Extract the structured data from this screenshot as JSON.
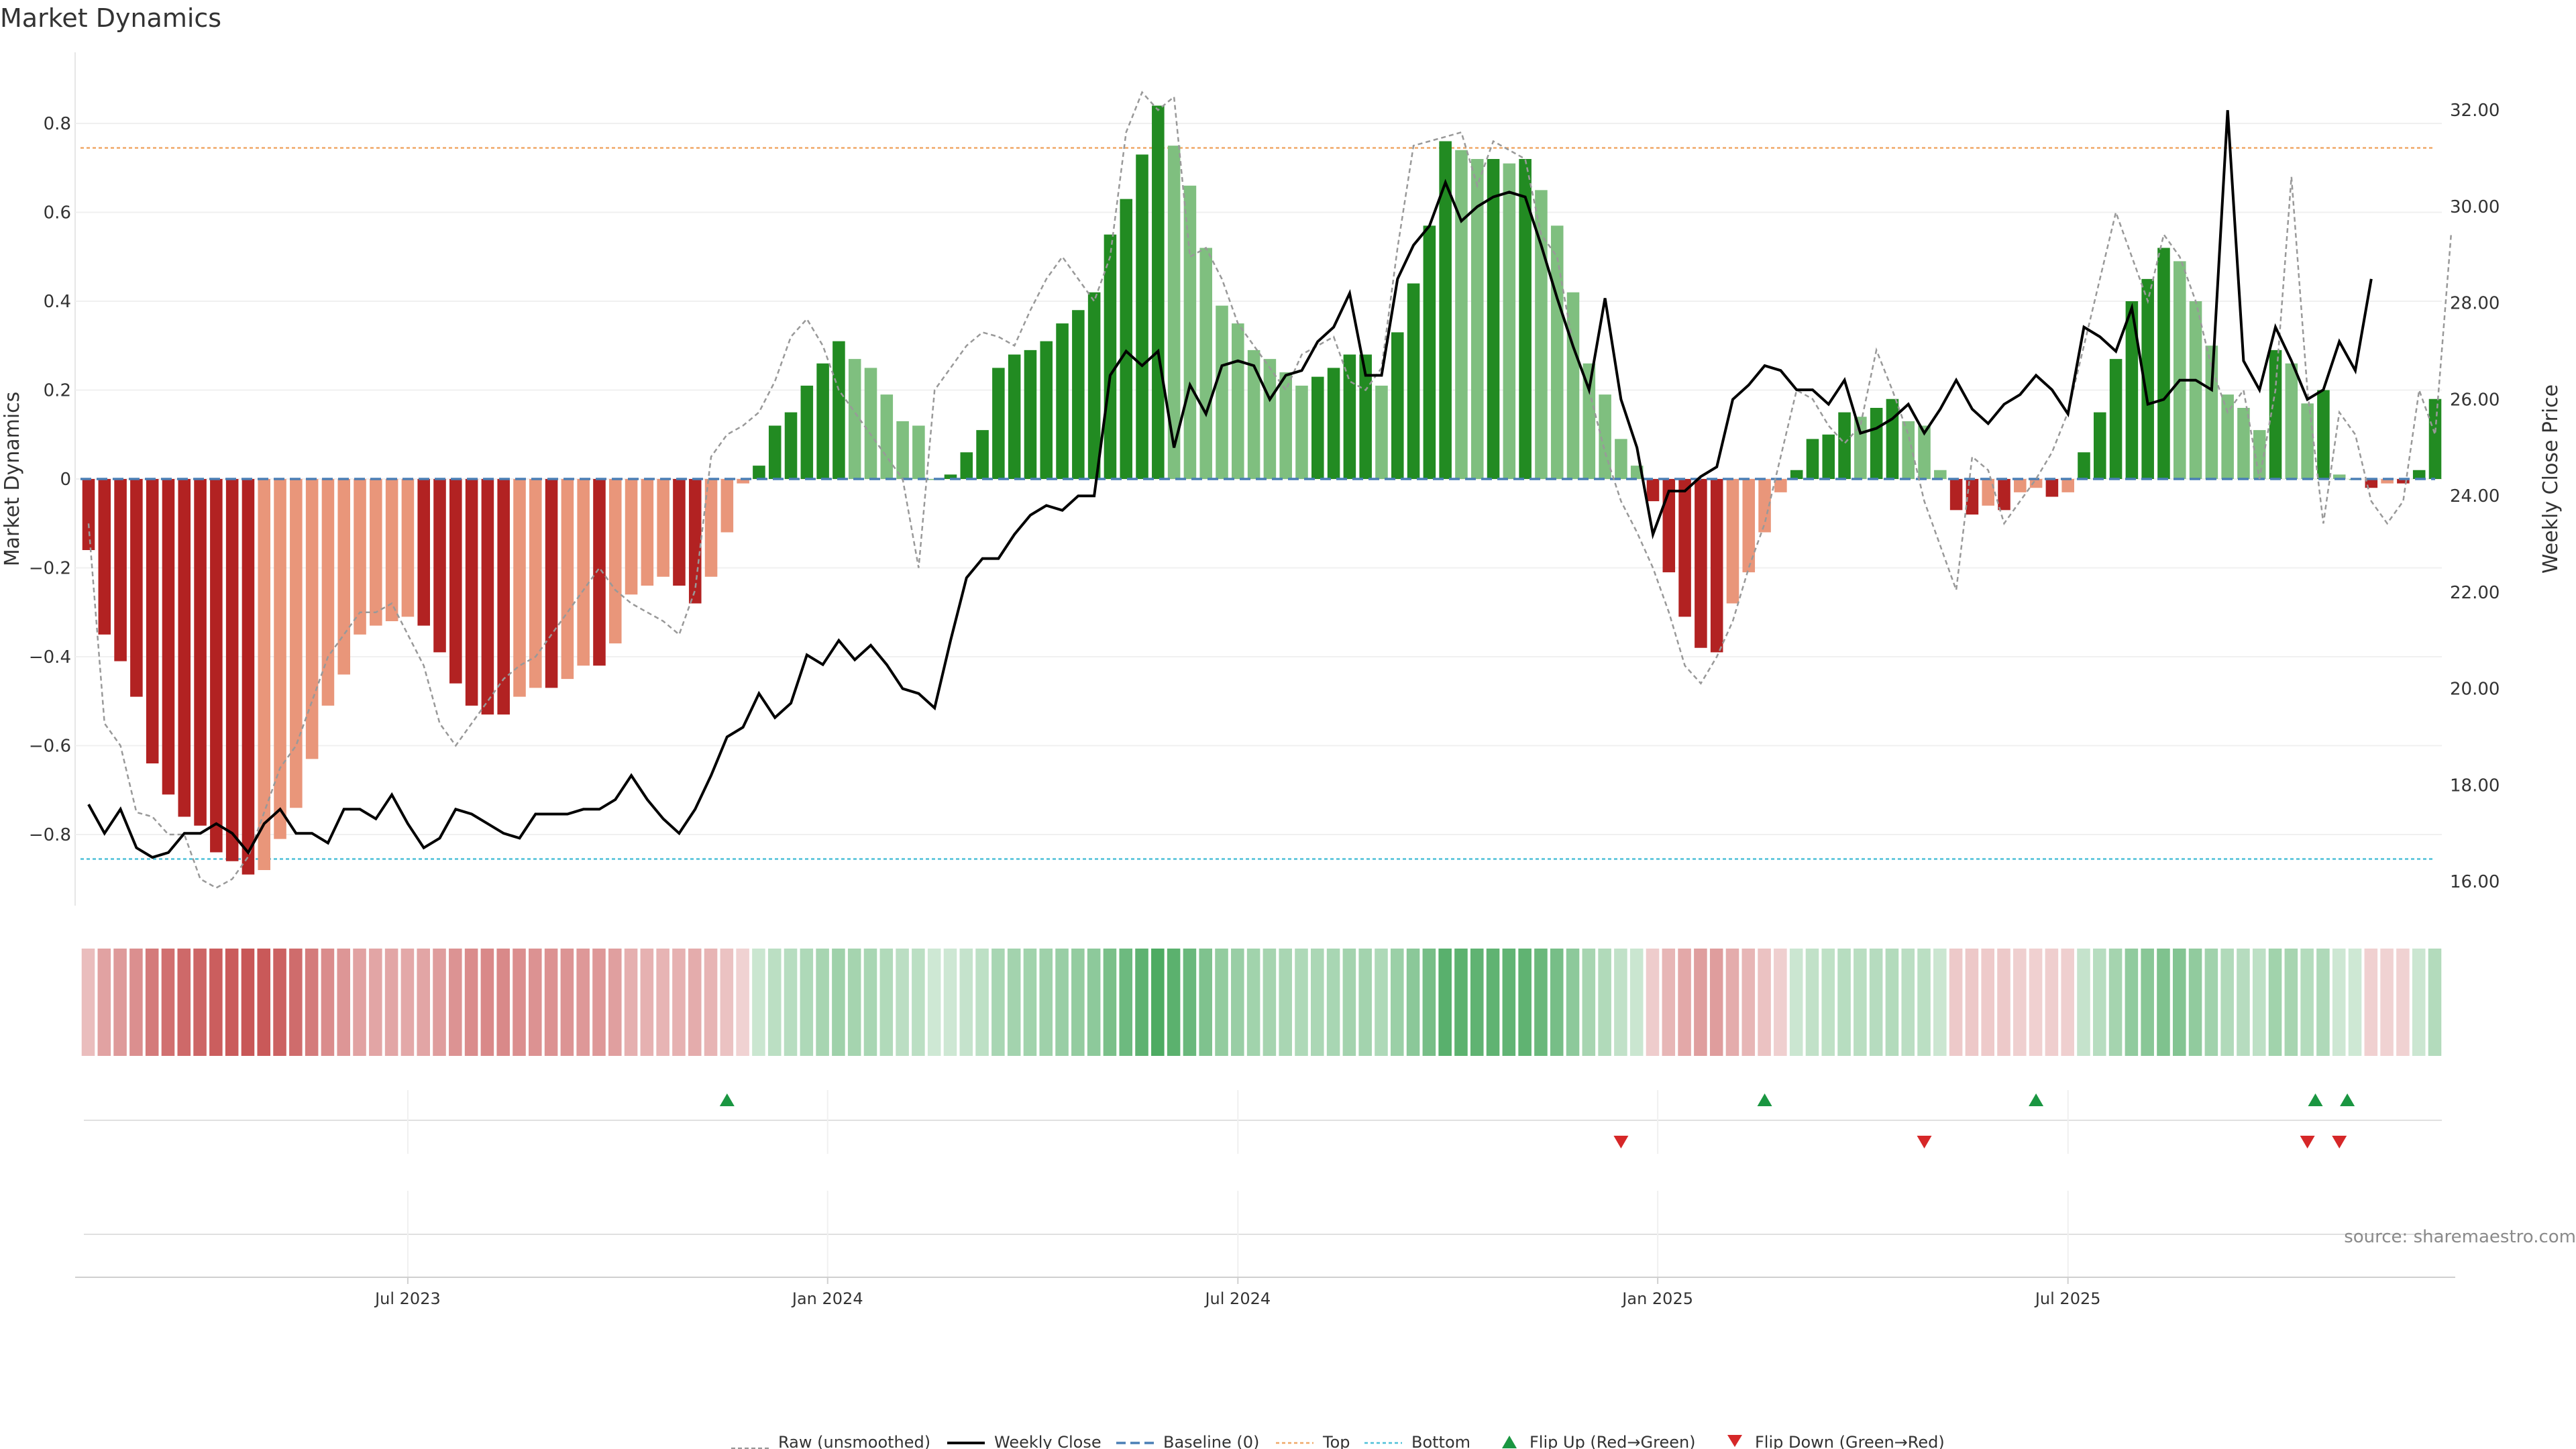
{
  "page": {
    "title": "Market Dynamics",
    "source": "source: sharemaestro.com"
  },
  "legend": {
    "raw": "Raw (unsmoothed)",
    "close": "Weekly Close",
    "baseline": "Baseline (0)",
    "top": "Top",
    "bottom": "Bottom",
    "flip_up": "Flip Up (Red→Green)",
    "flip_down": "Flip Down (Green→Red)"
  },
  "colors": {
    "green_strong": "#228b22",
    "green_light": "#7fbf7f",
    "red_strong": "#b22222",
    "red_light": "#e9967a",
    "close_line": "#000000",
    "raw_line": "#999999",
    "baseline": "#4a7fb5",
    "top_line": "#f0a868",
    "bottom_line": "#4ec0d8",
    "flip_up": "#1a9641",
    "flip_down": "#d62728"
  },
  "chart_data": {
    "type": "bar",
    "ylabel": "Market Dynamics",
    "y2label": "Weekly Close Price",
    "ylim": [
      -0.96,
      0.96
    ],
    "y2lim": [
      15.5,
      33.2
    ],
    "yticks": [
      -0.8,
      -0.6,
      -0.4,
      -0.2,
      0,
      0.2,
      0.4,
      0.6,
      0.8
    ],
    "yticklabels": [
      "−0.8",
      "−0.6",
      "−0.4",
      "−0.2",
      "0",
      "0.2",
      "0.4",
      "0.6",
      "0.8"
    ],
    "y2ticks": [
      16,
      18,
      20,
      22,
      24,
      26,
      28,
      30,
      32
    ],
    "y2ticklabels": [
      "16.00",
      "18.00",
      "20.00",
      "22.00",
      "24.00",
      "26.00",
      "28.00",
      "30.00",
      "32.00"
    ],
    "xticks": [
      "Jul 2023",
      "Jan 2024",
      "Jul 2024",
      "Jan 2025",
      "Jul 2025"
    ],
    "xtick_weeks": [
      20,
      46.3,
      72,
      98.3,
      124
    ],
    "top_level": 0.745,
    "bottom_level": -0.855,
    "baseline_level": 0,
    "grid": true,
    "legend_position": "bottom-center",
    "dynamics": [
      -0.16,
      -0.35,
      -0.41,
      -0.49,
      -0.64,
      -0.71,
      -0.76,
      -0.78,
      -0.84,
      -0.86,
      -0.89,
      -0.88,
      -0.81,
      -0.74,
      -0.63,
      -0.51,
      -0.44,
      -0.35,
      -0.33,
      -0.32,
      -0.31,
      -0.33,
      -0.39,
      -0.46,
      -0.51,
      -0.53,
      -0.53,
      -0.49,
      -0.47,
      -0.47,
      -0.45,
      -0.42,
      -0.42,
      -0.37,
      -0.26,
      -0.24,
      -0.22,
      -0.24,
      -0.28,
      -0.22,
      -0.12,
      -0.01,
      0.03,
      0.12,
      0.15,
      0.21,
      0.26,
      0.31,
      0.27,
      0.25,
      0.19,
      0.13,
      0.12,
      0,
      0.01,
      0.06,
      0.11,
      0.25,
      0.28,
      0.29,
      0.31,
      0.35,
      0.38,
      0.42,
      0.55,
      0.63,
      0.73,
      0.84,
      0.75,
      0.66,
      0.52,
      0.39,
      0.35,
      0.29,
      0.27,
      0.24,
      0.21,
      0.23,
      0.25,
      0.28,
      0.28,
      0.21,
      0.33,
      0.44,
      0.57,
      0.76,
      0.74,
      0.72,
      0.72,
      0.71,
      0.72,
      0.65,
      0.57,
      0.42,
      0.26,
      0.19,
      0.09,
      0.03,
      -0.05,
      -0.21,
      -0.31,
      -0.38,
      -0.39,
      -0.28,
      -0.21,
      -0.12,
      -0.03,
      0.02,
      0.09,
      0.1,
      0.15,
      0.14,
      0.16,
      0.18,
      0.13,
      0.12,
      0.02,
      -0.07,
      -0.08,
      -0.06,
      -0.07,
      -0.03,
      -0.02,
      -0.04,
      -0.03,
      0.06,
      0.15,
      0.27,
      0.4,
      0.45,
      0.52,
      0.49,
      0.4,
      0.3,
      0.19,
      0.16,
      0.11,
      0.29,
      0.26,
      0.17,
      0.2,
      0.01,
      0,
      -0.02,
      -0.01,
      -0.01,
      0.02,
      0.18
    ],
    "raw": [
      -0.1,
      -0.55,
      -0.6,
      -0.75,
      -0.76,
      -0.8,
      -0.8,
      -0.9,
      -0.92,
      -0.9,
      -0.85,
      -0.75,
      -0.65,
      -0.6,
      -0.5,
      -0.4,
      -0.35,
      -0.3,
      -0.3,
      -0.28,
      -0.35,
      -0.42,
      -0.55,
      -0.6,
      -0.55,
      -0.5,
      -0.45,
      -0.42,
      -0.4,
      -0.35,
      -0.3,
      -0.25,
      -0.2,
      -0.25,
      -0.28,
      -0.3,
      -0.32,
      -0.35,
      -0.25,
      0.05,
      0.1,
      0.12,
      0.15,
      0.22,
      0.32,
      0.36,
      0.3,
      0.2,
      0.15,
      0.1,
      0.05,
      0,
      -0.2,
      0.2,
      0.25,
      0.3,
      0.33,
      0.32,
      0.3,
      0.38,
      0.45,
      0.5,
      0.45,
      0.4,
      0.5,
      0.78,
      0.87,
      0.83,
      0.86,
      0.5,
      0.52,
      0.45,
      0.35,
      0.3,
      0.25,
      0.2,
      0.28,
      0.3,
      0.32,
      0.22,
      0.2,
      0.25,
      0.52,
      0.75,
      0.76,
      0.77,
      0.78,
      0.66,
      0.76,
      0.74,
      0.72,
      0.55,
      0.5,
      0.3,
      0.2,
      0.06,
      -0.05,
      -0.12,
      -0.2,
      -0.3,
      -0.42,
      -0.46,
      -0.4,
      -0.32,
      -0.2,
      -0.1,
      0.05,
      0.2,
      0.18,
      0.12,
      0.08,
      0.12,
      0.29,
      0.2,
      0.1,
      -0.05,
      -0.15,
      -0.25,
      0.05,
      0.02,
      -0.1,
      -0.05,
      0,
      0.06,
      0.15,
      0.3,
      0.45,
      0.6,
      0.5,
      0.4,
      0.55,
      0.5,
      0.4,
      0.25,
      0.15,
      0.2,
      0,
      0.2,
      0.68,
      0.2,
      -0.1,
      0.15,
      0.1,
      -0.05,
      -0.1,
      -0.05,
      0.2,
      0.1,
      0.55
    ],
    "close": [
      17.6,
      17.0,
      17.5,
      16.7,
      16.5,
      16.6,
      17.0,
      17.0,
      17.2,
      17.0,
      16.6,
      17.2,
      17.5,
      17.0,
      17.0,
      16.8,
      17.5,
      17.5,
      17.3,
      17.8,
      17.2,
      16.7,
      16.9,
      17.5,
      17.4,
      17.2,
      17.0,
      16.9,
      17.4,
      17.4,
      17.4,
      17.5,
      17.5,
      17.7,
      18.2,
      17.7,
      17.3,
      17.0,
      17.5,
      18.2,
      19.0,
      19.2,
      19.9,
      19.4,
      19.7,
      20.7,
      20.5,
      21.0,
      20.6,
      20.9,
      20.5,
      20.0,
      19.9,
      19.6,
      21.0,
      22.3,
      22.7,
      22.7,
      23.2,
      23.6,
      23.8,
      23.7,
      24.0,
      24.0,
      26.5,
      27.0,
      26.7,
      27.0,
      25.0,
      26.3,
      25.7,
      26.7,
      26.8,
      26.7,
      26.0,
      26.5,
      26.6,
      27.2,
      27.5,
      28.2,
      26.5,
      26.5,
      28.5,
      29.2,
      29.6,
      30.5,
      29.7,
      30.0,
      30.2,
      30.3,
      30.2,
      29.2,
      28.1,
      27.1,
      26.2,
      28.1,
      26.0,
      25.0,
      23.2,
      24.1,
      24.1,
      24.4,
      24.6,
      26.0,
      26.3,
      26.7,
      26.6,
      26.2,
      26.2,
      25.9,
      26.4,
      25.3,
      25.4,
      25.6,
      25.9,
      25.3,
      25.8,
      26.4,
      25.8,
      25.5,
      25.9,
      26.1,
      26.5,
      26.2,
      25.7,
      27.5,
      27.3,
      27.0,
      27.9,
      25.9,
      26.0,
      26.4,
      26.4,
      26.2,
      32.0,
      26.8,
      26.2,
      27.5,
      26.8,
      26.0,
      26.2,
      27.2,
      26.6,
      28.5
    ],
    "flip_up_weeks": [
      40,
      105,
      122,
      139.5,
      141.5
    ],
    "flip_down_weeks": [
      96,
      115,
      139,
      141
    ]
  }
}
